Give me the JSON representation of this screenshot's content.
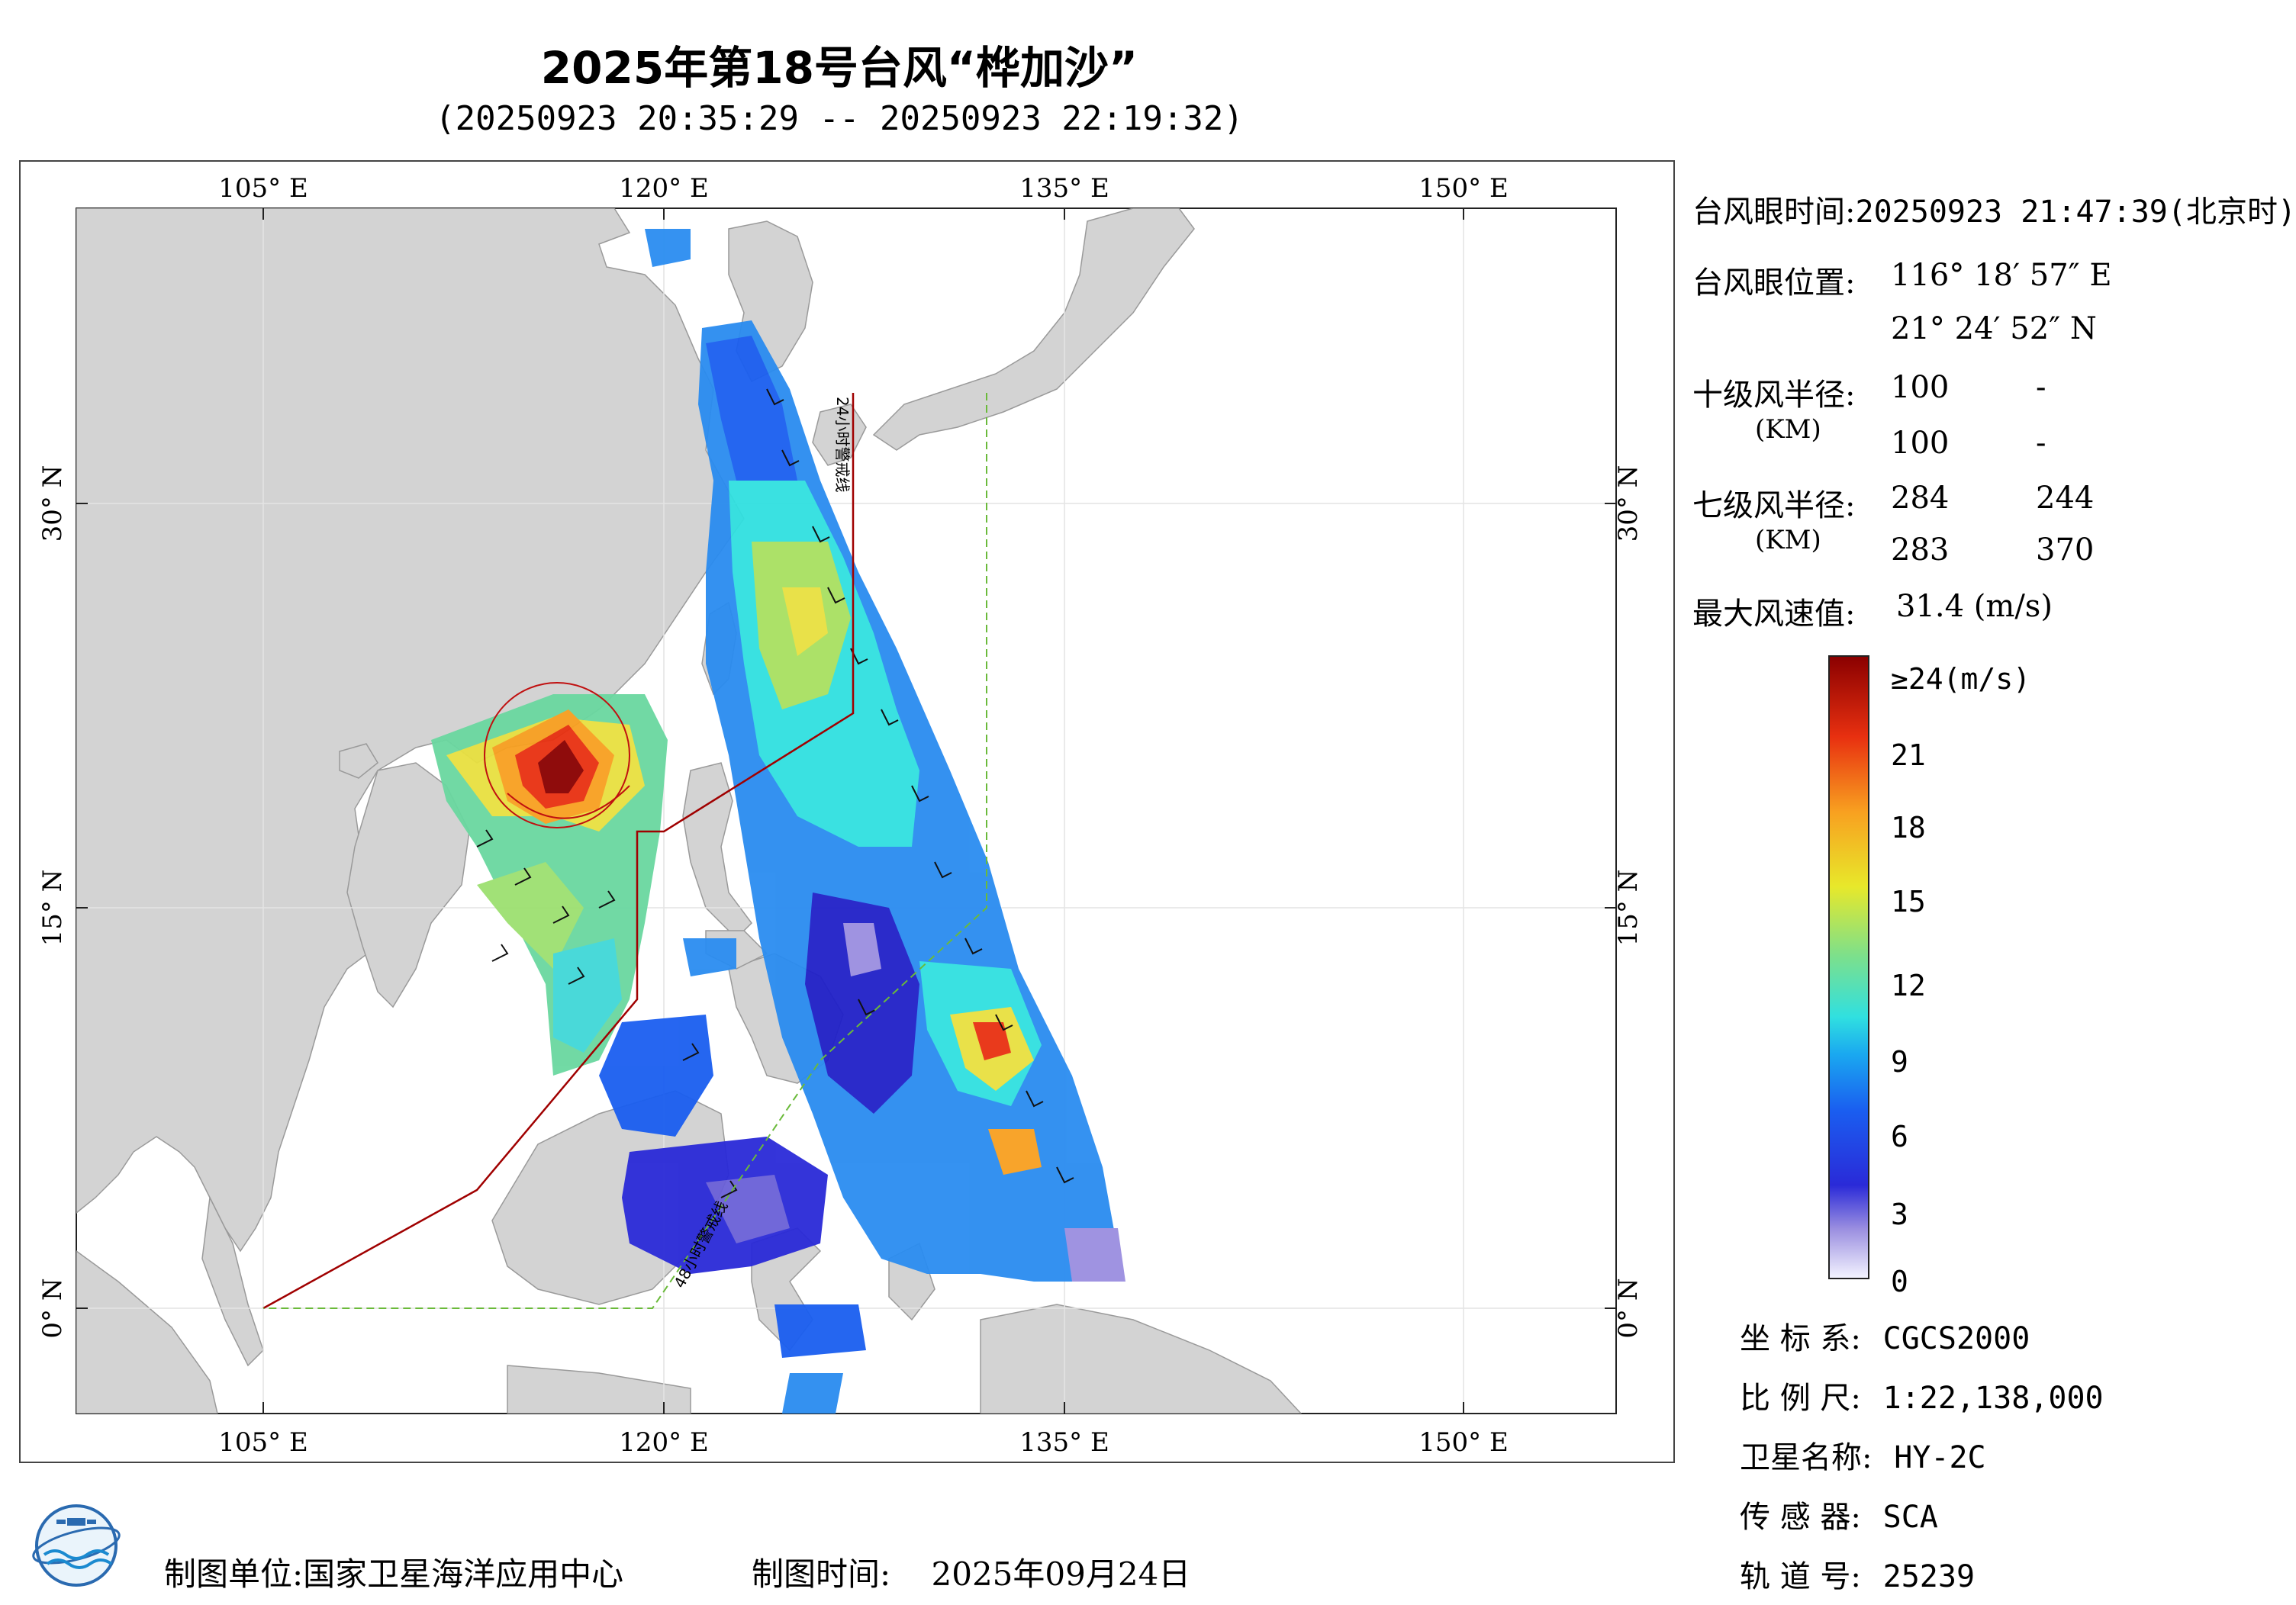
{
  "title": "2025年第18号台风“桦加沙”",
  "subtitle": "(20250923 20:35:29 -- 20250923 22:19:32)",
  "map": {
    "lon_ticks": [
      "105° E",
      "120° E",
      "135° E",
      "150° E"
    ],
    "lat_ticks": [
      "30° N",
      "15° N",
      "0° N"
    ],
    "line_labels": {
      "warn24": "24小时警戒线",
      "warn48": "48小时警戒线"
    },
    "colors": {
      "land": "#d3d3d3",
      "ocean": "#ffffff",
      "warn24": "#a00000",
      "warn48": "#6aba3a",
      "typhoon_circle": "#c01010"
    }
  },
  "info": {
    "eye_time_label": "台风眼时间:",
    "eye_time_value": "20250923 21:47:39(北京时)",
    "eye_pos_label": "台风眼位置:",
    "eye_lon": "116° 18′ 57″ E",
    "eye_lat": "21° 24′ 52″ N",
    "r10_label": "十级风半径:",
    "r10_unit": "(KM)",
    "r10_values": [
      "100",
      "-",
      "100",
      "-"
    ],
    "r7_label": "七级风半径:",
    "r7_unit": "(KM)",
    "r7_values": [
      "284",
      "244",
      "283",
      "370"
    ],
    "max_wind_label": "最大风速值:",
    "max_wind_value": "31.4  (m/s)"
  },
  "colorbar": {
    "labels": [
      "≥24(m/s)",
      "21",
      "18",
      "15",
      "12",
      "9",
      "6",
      "3",
      "0"
    ],
    "stops": [
      "#f4f4ff",
      "#9a8ee0",
      "#2a2ad8",
      "#1a5ef0",
      "#1aa8f0",
      "#30e0e0",
      "#7ee08a",
      "#e8e82a",
      "#f8a020",
      "#e83010",
      "#8a0000"
    ]
  },
  "meta": {
    "crs_label": "坐 标 系:",
    "crs_value": "CGCS2000",
    "scale_label": "比 例 尺:",
    "scale_value": "1:22,138,000",
    "sat_label": "卫星名称:",
    "sat_value": "HY-2C",
    "sensor_label": "传 感 器:",
    "sensor_value": "SCA",
    "orbit_label": "轨 道 号:",
    "orbit_value": "25239"
  },
  "footer": {
    "org_label": "制图单位:",
    "org_value": "国家卫星海洋应用中心",
    "date_label": "制图时间:",
    "date_value": "2025年09月24日"
  }
}
